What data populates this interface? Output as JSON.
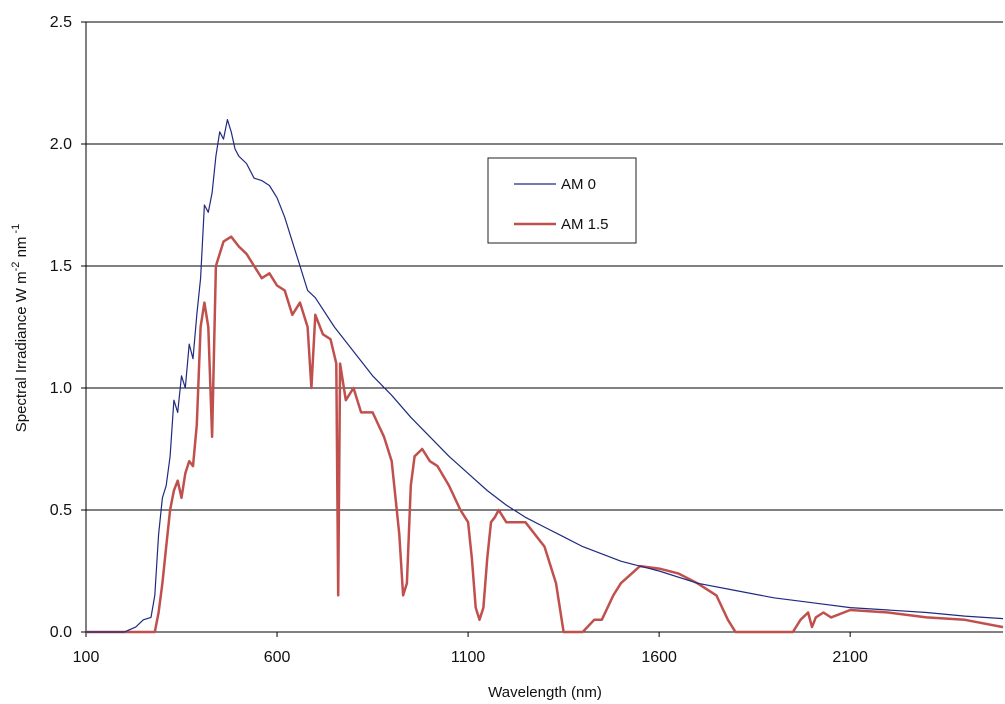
{
  "chart_data": {
    "type": "line",
    "xlabel": "Wavelength (nm)",
    "ylabel": {
      "base": "Spectral Irradiance W m",
      "sup1": "-2",
      "mid": " nm",
      "sup2": " -1"
    },
    "xlim": [
      100,
      2500
    ],
    "ylim": [
      0,
      2.5
    ],
    "xticks": [
      100,
      600,
      1100,
      1600,
      2100
    ],
    "xtick_labels": [
      "100",
      "600",
      "1100",
      "1600",
      "2100"
    ],
    "yticks": [
      0,
      0.5,
      1.0,
      1.5,
      2.0,
      2.5
    ],
    "ytick_labels": [
      "0.0",
      "0.5",
      "1.0",
      "1.5",
      "2.0",
      "2.5"
    ],
    "grid": "horizontal",
    "legend": "upper-right-center",
    "series": [
      {
        "name": "AM 0",
        "color": "#1f2a80",
        "x": [
          100,
          200,
          230,
          250,
          270,
          280,
          290,
          300,
          310,
          320,
          330,
          340,
          350,
          360,
          370,
          380,
          390,
          400,
          410,
          420,
          430,
          440,
          450,
          460,
          470,
          480,
          490,
          500,
          520,
          540,
          560,
          580,
          600,
          620,
          640,
          660,
          680,
          700,
          750,
          800,
          850,
          900,
          950,
          1000,
          1050,
          1100,
          1150,
          1200,
          1250,
          1300,
          1350,
          1400,
          1500,
          1600,
          1700,
          1800,
          1900,
          2000,
          2100,
          2200,
          2300,
          2400,
          2500
        ],
        "y": [
          0.0,
          0.0,
          0.02,
          0.05,
          0.06,
          0.15,
          0.4,
          0.55,
          0.6,
          0.72,
          0.95,
          0.9,
          1.05,
          1.0,
          1.18,
          1.12,
          1.3,
          1.45,
          1.75,
          1.72,
          1.8,
          1.95,
          2.05,
          2.02,
          2.1,
          2.05,
          1.98,
          1.95,
          1.92,
          1.86,
          1.85,
          1.83,
          1.78,
          1.7,
          1.6,
          1.5,
          1.4,
          1.37,
          1.25,
          1.15,
          1.05,
          0.97,
          0.88,
          0.8,
          0.72,
          0.65,
          0.58,
          0.52,
          0.47,
          0.43,
          0.39,
          0.35,
          0.29,
          0.25,
          0.2,
          0.17,
          0.14,
          0.12,
          0.1,
          0.09,
          0.08,
          0.065,
          0.055
        ]
      },
      {
        "name": "AM 1.5",
        "color": "#c0504d",
        "x": [
          100,
          280,
          290,
          300,
          310,
          320,
          330,
          340,
          350,
          360,
          370,
          380,
          390,
          400,
          410,
          420,
          430,
          440,
          460,
          480,
          500,
          520,
          540,
          560,
          580,
          600,
          620,
          640,
          660,
          680,
          690,
          700,
          720,
          740,
          755,
          760,
          765,
          780,
          800,
          820,
          850,
          880,
          900,
          920,
          930,
          940,
          950,
          960,
          980,
          1000,
          1020,
          1050,
          1080,
          1100,
          1110,
          1120,
          1130,
          1140,
          1150,
          1160,
          1170,
          1180,
          1200,
          1250,
          1300,
          1330,
          1350,
          1360,
          1380,
          1400,
          1430,
          1450,
          1480,
          1500,
          1550,
          1600,
          1650,
          1700,
          1750,
          1780,
          1800,
          1850,
          1900,
          1950,
          1970,
          1990,
          2000,
          2010,
          2030,
          2050,
          2100,
          2200,
          2300,
          2400,
          2500
        ],
        "y": [
          0.0,
          0.0,
          0.08,
          0.2,
          0.35,
          0.5,
          0.58,
          0.62,
          0.55,
          0.65,
          0.7,
          0.68,
          0.85,
          1.25,
          1.35,
          1.25,
          0.8,
          1.5,
          1.6,
          1.62,
          1.58,
          1.55,
          1.5,
          1.45,
          1.47,
          1.42,
          1.4,
          1.3,
          1.35,
          1.25,
          1.0,
          1.3,
          1.22,
          1.2,
          1.1,
          0.15,
          1.1,
          0.95,
          1.0,
          0.9,
          0.9,
          0.8,
          0.7,
          0.4,
          0.15,
          0.2,
          0.6,
          0.72,
          0.75,
          0.7,
          0.68,
          0.6,
          0.5,
          0.45,
          0.3,
          0.1,
          0.05,
          0.1,
          0.3,
          0.45,
          0.47,
          0.5,
          0.45,
          0.45,
          0.35,
          0.2,
          0.0,
          0.0,
          0.0,
          0.0,
          0.05,
          0.05,
          0.15,
          0.2,
          0.27,
          0.26,
          0.24,
          0.2,
          0.15,
          0.05,
          0.0,
          0.0,
          0.0,
          0.0,
          0.05,
          0.08,
          0.02,
          0.06,
          0.08,
          0.06,
          0.09,
          0.08,
          0.06,
          0.05,
          0.02
        ]
      }
    ]
  }
}
